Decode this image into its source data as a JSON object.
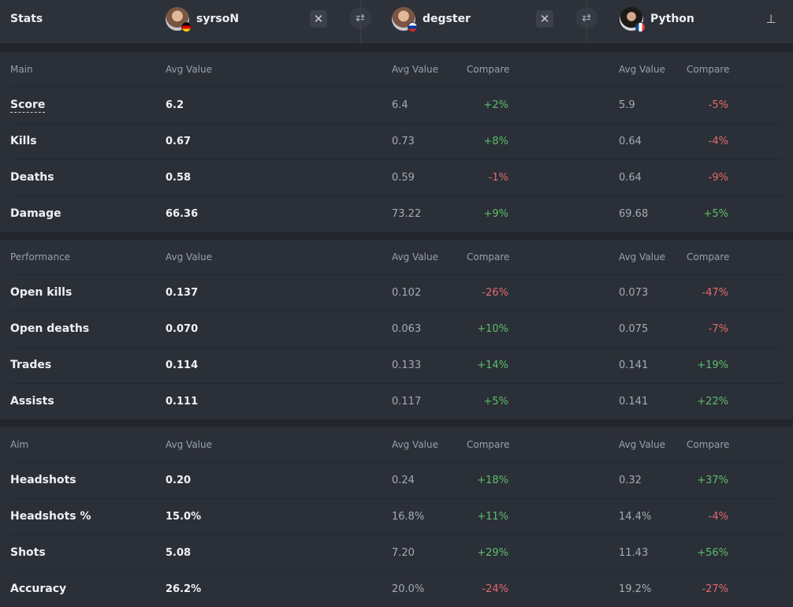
{
  "header": {
    "title": "Stats",
    "players": [
      {
        "name": "syrsoN"
      },
      {
        "name": "degster"
      },
      {
        "name": "Python"
      }
    ]
  },
  "icons": {
    "close": "close-icon",
    "swap": "swap-icon",
    "pin": "pin-icon"
  },
  "columns": {
    "avg": "Avg Value",
    "compare": "Compare"
  },
  "sections": [
    {
      "title": "Main",
      "rows": [
        {
          "label": "Score",
          "v1": "6.2",
          "v2": "6.4",
          "c2": "+2%",
          "v3": "5.9",
          "c3": "-5%"
        },
        {
          "label": "Kills",
          "v1": "0.67",
          "v2": "0.73",
          "c2": "+8%",
          "v3": "0.64",
          "c3": "-4%"
        },
        {
          "label": "Deaths",
          "v1": "0.58",
          "v2": "0.59",
          "c2": "-1%",
          "v3": "0.64",
          "c3": "-9%"
        },
        {
          "label": "Damage",
          "v1": "66.36",
          "v2": "73.22",
          "c2": "+9%",
          "v3": "69.68",
          "c3": "+5%"
        }
      ]
    },
    {
      "title": "Performance",
      "rows": [
        {
          "label": "Open kills",
          "v1": "0.137",
          "v2": "0.102",
          "c2": "-26%",
          "v3": "0.073",
          "c3": "-47%"
        },
        {
          "label": "Open deaths",
          "v1": "0.070",
          "v2": "0.063",
          "c2": "+10%",
          "v3": "0.075",
          "c3": "-7%"
        },
        {
          "label": "Trades",
          "v1": "0.114",
          "v2": "0.133",
          "c2": "+14%",
          "v3": "0.141",
          "c3": "+19%"
        },
        {
          "label": "Assists",
          "v1": "0.111",
          "v2": "0.117",
          "c2": "+5%",
          "v3": "0.141",
          "c3": "+22%"
        }
      ]
    },
    {
      "title": "Aim",
      "rows": [
        {
          "label": "Headshots",
          "v1": "0.20",
          "v2": "0.24",
          "c2": "+18%",
          "v3": "0.32",
          "c3": "+37%"
        },
        {
          "label": "Headshots %",
          "v1": "15.0%",
          "v2": "16.8%",
          "c2": "+11%",
          "v3": "14.4%",
          "c3": "-4%"
        },
        {
          "label": "Shots",
          "v1": "5.08",
          "v2": "7.20",
          "c2": "+29%",
          "v3": "11.43",
          "c3": "+56%"
        },
        {
          "label": "Accuracy",
          "v1": "26.2%",
          "v2": "20.0%",
          "c2": "-24%",
          "v3": "19.2%",
          "c3": "-27%"
        }
      ]
    }
  ],
  "colors": {
    "positive": "#5cbe6a",
    "negative": "#e06b6b",
    "background": "#2b2f37"
  }
}
